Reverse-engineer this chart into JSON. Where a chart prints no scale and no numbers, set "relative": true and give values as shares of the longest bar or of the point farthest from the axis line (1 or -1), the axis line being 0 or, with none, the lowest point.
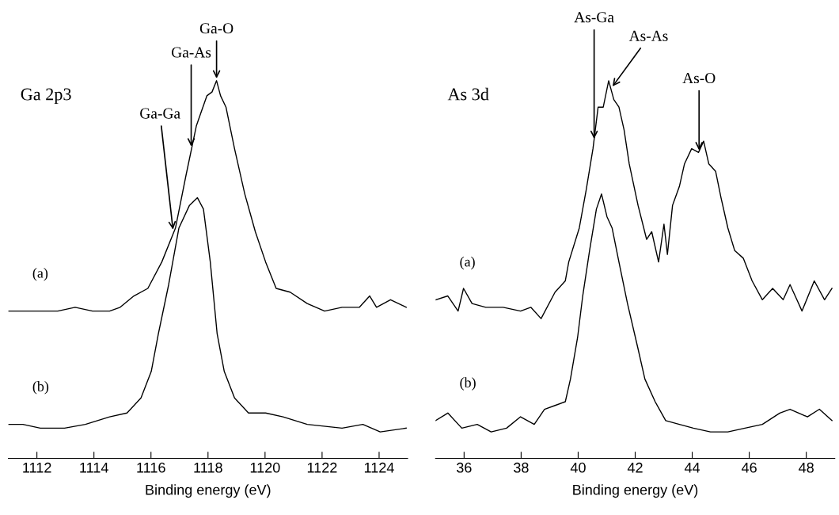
{
  "chart_data": [
    {
      "type": "line",
      "title": "Ga 2p3",
      "xlabel": "Binding energy (eV)",
      "relative": true,
      "tick_labels": "x",
      "grid": false,
      "legend": false,
      "xlim": [
        1111,
        1125
      ],
      "xticks": [
        1112,
        1114,
        1116,
        1118,
        1120,
        1122,
        1124
      ],
      "series": [
        {
          "name": "(a)",
          "color": "#000000",
          "x": [
            1111.0,
            1111.27,
            1111.76,
            1112.24,
            1112.73,
            1113.34,
            1113.95,
            1114.55,
            1114.92,
            1115.4,
            1115.89,
            1116.38,
            1116.86,
            1117.23,
            1117.59,
            1117.96,
            1118.14,
            1118.3,
            1118.44,
            1118.63,
            1118.93,
            1119.29,
            1119.66,
            1120.02,
            1120.39,
            1120.88,
            1121.48,
            1122.09,
            1122.7,
            1123.31,
            1123.67,
            1123.91,
            1124.4,
            1124.95
          ],
          "values": [
            0.39,
            0.39,
            0.39,
            0.39,
            0.39,
            0.4,
            0.39,
            0.39,
            0.4,
            0.43,
            0.45,
            0.52,
            0.61,
            0.75,
            0.88,
            0.96,
            0.97,
            1.0,
            0.96,
            0.93,
            0.82,
            0.7,
            0.6,
            0.52,
            0.45,
            0.44,
            0.41,
            0.39,
            0.4,
            0.4,
            0.43,
            0.4,
            0.42,
            0.4
          ]
        },
        {
          "name": "(b)",
          "color": "#000000",
          "x": [
            1111.0,
            1111.51,
            1112.12,
            1112.97,
            1113.7,
            1114.55,
            1115.16,
            1115.65,
            1116.01,
            1116.26,
            1116.62,
            1116.98,
            1117.35,
            1117.63,
            1117.84,
            1118.08,
            1118.32,
            1118.57,
            1118.93,
            1119.42,
            1120.02,
            1120.63,
            1121.48,
            1122.7,
            1123.43,
            1124.04,
            1124.95
          ],
          "values": [
            0.09,
            0.09,
            0.08,
            0.08,
            0.09,
            0.11,
            0.12,
            0.16,
            0.23,
            0.33,
            0.46,
            0.61,
            0.67,
            0.69,
            0.66,
            0.52,
            0.33,
            0.23,
            0.16,
            0.12,
            0.12,
            0.11,
            0.09,
            0.08,
            0.09,
            0.07,
            0.08
          ]
        }
      ],
      "annotations": [
        {
          "text": "Ga-Ga",
          "x": 1116.78,
          "y": 0.6
        },
        {
          "text": "Ga-As",
          "x": 1117.41,
          "y": 0.82
        },
        {
          "text": "Ga-O",
          "x": 1118.3,
          "y": 1.0
        }
      ]
    },
    {
      "type": "line",
      "title": "As 3d",
      "xlabel": "Binding energy (eV)",
      "relative": true,
      "tick_labels": "x",
      "grid": false,
      "legend": false,
      "xlim": [
        35,
        49
      ],
      "xticks": [
        36,
        38,
        40,
        42,
        44,
        46,
        48
      ],
      "series": [
        {
          "name": "(a)",
          "color": "#000000",
          "x": [
            35.01,
            35.43,
            35.79,
            35.98,
            36.28,
            36.76,
            37.37,
            37.98,
            38.34,
            38.7,
            39.19,
            39.55,
            39.67,
            40.04,
            40.28,
            40.52,
            40.7,
            40.88,
            41.07,
            41.25,
            41.43,
            41.61,
            41.79,
            42.1,
            42.4,
            42.58,
            42.82,
            43.01,
            43.13,
            43.31,
            43.55,
            43.73,
            43.98,
            44.22,
            44.4,
            44.58,
            44.82,
            45.01,
            45.25,
            45.49,
            45.79,
            46.1,
            46.46,
            46.82,
            47.19,
            47.43,
            47.67,
            47.85,
            48.28,
            48.64,
            48.9
          ],
          "values": [
            0.42,
            0.43,
            0.39,
            0.45,
            0.41,
            0.4,
            0.4,
            0.39,
            0.4,
            0.37,
            0.44,
            0.47,
            0.52,
            0.61,
            0.71,
            0.82,
            0.93,
            0.93,
            1.0,
            0.95,
            0.93,
            0.87,
            0.78,
            0.67,
            0.58,
            0.6,
            0.52,
            0.62,
            0.54,
            0.67,
            0.72,
            0.78,
            0.82,
            0.81,
            0.84,
            0.78,
            0.76,
            0.69,
            0.61,
            0.55,
            0.53,
            0.47,
            0.42,
            0.45,
            0.42,
            0.46,
            0.42,
            0.39,
            0.47,
            0.42,
            0.45
          ]
        },
        {
          "name": "(b)",
          "color": "#000000",
          "x": [
            35.0,
            35.43,
            35.92,
            36.46,
            36.95,
            37.49,
            37.98,
            38.46,
            38.82,
            39.19,
            39.55,
            39.73,
            39.98,
            40.16,
            40.4,
            40.64,
            40.82,
            41.01,
            41.19,
            41.43,
            41.73,
            42.1,
            42.34,
            42.7,
            43.07,
            43.55,
            44.04,
            44.64,
            45.25,
            45.85,
            46.46,
            47.07,
            47.43,
            48.04,
            48.46,
            48.9
          ],
          "values": [
            0.1,
            0.12,
            0.08,
            0.09,
            0.07,
            0.08,
            0.11,
            0.09,
            0.13,
            0.14,
            0.15,
            0.21,
            0.32,
            0.43,
            0.55,
            0.66,
            0.7,
            0.64,
            0.61,
            0.52,
            0.41,
            0.29,
            0.21,
            0.15,
            0.1,
            0.09,
            0.08,
            0.07,
            0.07,
            0.08,
            0.09,
            0.12,
            0.13,
            0.11,
            0.13,
            0.1
          ]
        }
      ],
      "annotations": [
        {
          "text": "As-Ga",
          "x": 40.56,
          "y": 0.84
        },
        {
          "text": "As-As",
          "x": 41.16,
          "y": 0.98
        },
        {
          "text": "As-O",
          "x": 44.24,
          "y": 0.81
        }
      ]
    }
  ]
}
